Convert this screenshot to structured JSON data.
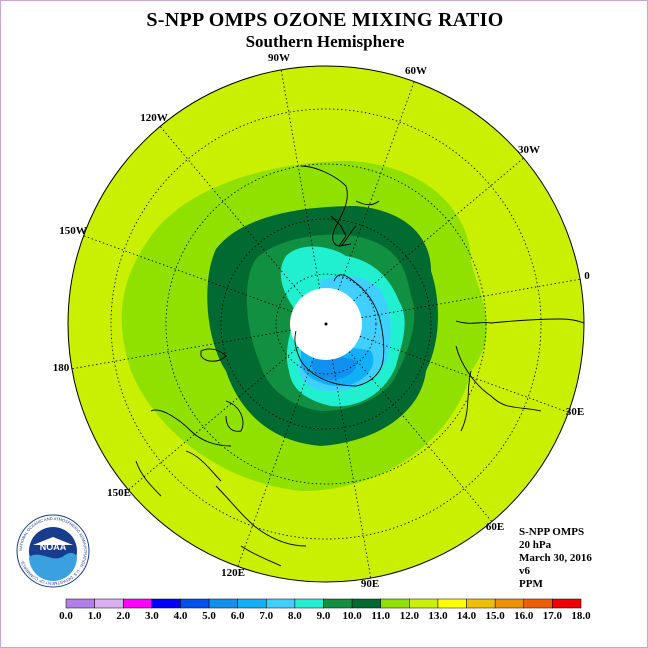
{
  "header": {
    "title": "S-NPP OMPS OZONE MIXING RATIO",
    "subtitle": "Southern Hemisphere"
  },
  "map": {
    "projection": "south polar stereographic",
    "longitude_labels": [
      "90W",
      "60W",
      "30W",
      "0",
      "30E",
      "60E",
      "90E",
      "120E",
      "150E",
      "180",
      "150W",
      "120W"
    ],
    "land_color": "#c8f000",
    "pole_no_data_color": "#ffffff"
  },
  "info": {
    "instrument": "S-NPP OMPS",
    "level": "20 hPa",
    "date": "March 30, 2016",
    "version": "v6",
    "units": "PPM"
  },
  "colorbar": {
    "labels": [
      "0.0",
      "1.0",
      "2.0",
      "3.0",
      "4.0",
      "5.0",
      "6.0",
      "7.0",
      "8.0",
      "9.0",
      "10.0",
      "11.0",
      "12.0",
      "13.0",
      "14.0",
      "15.0",
      "16.0",
      "17.0",
      "18.0"
    ],
    "colors": [
      "#b080e8",
      "#d8b0f0",
      "#ff00ff",
      "#0000ff",
      "#0050f0",
      "#1090f0",
      "#10b0f8",
      "#40d0ff",
      "#20f0d0",
      "#109040",
      "#006a30",
      "#90e000",
      "#c8f000",
      "#ffff00",
      "#f0c000",
      "#f09000",
      "#f06000",
      "#f00000",
      "#906040"
    ]
  },
  "logo": {
    "text": "NOAA",
    "ring_text": "NATIONAL OCEANIC AND ATMOSPHERIC ADMINISTRATION · U.S. DEPARTMENT OF COMMERCE"
  }
}
